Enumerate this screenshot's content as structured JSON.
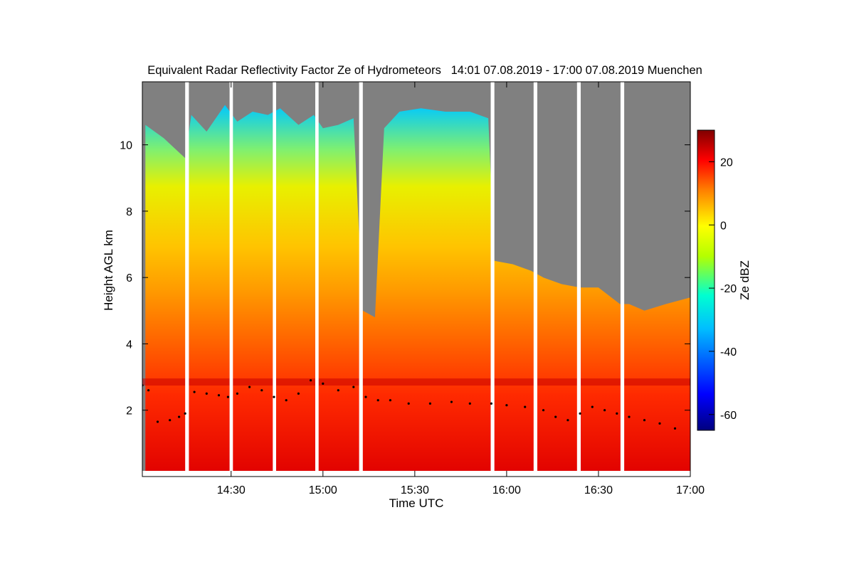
{
  "chart_data": {
    "type": "heatmap",
    "title": "Equivalent Radar Reflectivity Factor Ze of Hydrometeors   14:01 07.08.2019 - 17:00 07.08.2019 Muenchen",
    "xlabel": "Time UTC",
    "ylabel": "Height AGL km",
    "colorbar_label": "Ze dBZ",
    "x_range_minutes_utc": [
      841,
      1020
    ],
    "y_range_km": [
      0,
      11.9
    ],
    "color_range_dbz": [
      -65,
      30
    ],
    "x_ticks": [
      {
        "minute": 870,
        "label": "14:30"
      },
      {
        "minute": 900,
        "label": "15:00"
      },
      {
        "minute": 930,
        "label": "15:30"
      },
      {
        "minute": 960,
        "label": "16:00"
      },
      {
        "minute": 990,
        "label": "16:30"
      },
      {
        "minute": 1020,
        "label": "17:00"
      }
    ],
    "y_ticks": [
      {
        "value": 2,
        "label": "2"
      },
      {
        "value": 4,
        "label": "4"
      },
      {
        "value": 6,
        "label": "6"
      },
      {
        "value": 8,
        "label": "8"
      },
      {
        "value": 10,
        "label": "10"
      }
    ],
    "colorbar_ticks": [
      {
        "value": 20,
        "label": "20"
      },
      {
        "value": 0,
        "label": "0"
      },
      {
        "value": -20,
        "label": "-20"
      },
      {
        "value": -40,
        "label": "-40"
      },
      {
        "value": -60,
        "label": "-60"
      }
    ],
    "no_data_color": "#808080",
    "data_gaps_minutes": [
      [
        855,
        856.2
      ],
      [
        869.5,
        870.6
      ],
      [
        883.6,
        884.7
      ],
      [
        897.5,
        898.6
      ],
      [
        911.8,
        913.0
      ],
      [
        954.8,
        956.0
      ],
      [
        968.8,
        970.0
      ],
      [
        983.0,
        984.2
      ],
      [
        997.2,
        998.4
      ]
    ],
    "echo_top_profile": [
      {
        "minute": 842,
        "height_km": 10.6
      },
      {
        "minute": 848,
        "height_km": 10.2
      },
      {
        "minute": 855,
        "height_km": 9.6
      },
      {
        "minute": 857,
        "height_km": 10.9
      },
      {
        "minute": 862,
        "height_km": 10.4
      },
      {
        "minute": 868,
        "height_km": 11.2
      },
      {
        "minute": 872,
        "height_km": 10.7
      },
      {
        "minute": 877,
        "height_km": 11.0
      },
      {
        "minute": 882,
        "height_km": 10.9
      },
      {
        "minute": 886,
        "height_km": 11.1
      },
      {
        "minute": 892,
        "height_km": 10.6
      },
      {
        "minute": 897,
        "height_km": 10.9
      },
      {
        "minute": 900,
        "height_km": 10.5
      },
      {
        "minute": 905,
        "height_km": 10.6
      },
      {
        "minute": 910,
        "height_km": 10.8
      },
      {
        "minute": 913,
        "height_km": 5.0
      },
      {
        "minute": 917,
        "height_km": 4.8
      },
      {
        "minute": 920,
        "height_km": 10.5
      },
      {
        "minute": 925,
        "height_km": 11.0
      },
      {
        "minute": 932,
        "height_km": 11.1
      },
      {
        "minute": 940,
        "height_km": 11.0
      },
      {
        "minute": 948,
        "height_km": 11.0
      },
      {
        "minute": 954,
        "height_km": 10.8
      },
      {
        "minute": 956,
        "height_km": 6.5
      },
      {
        "minute": 962,
        "height_km": 6.4
      },
      {
        "minute": 968,
        "height_km": 6.2
      },
      {
        "minute": 972,
        "height_km": 6.0
      },
      {
        "minute": 978,
        "height_km": 5.8
      },
      {
        "minute": 984,
        "height_km": 5.7
      },
      {
        "minute": 990,
        "height_km": 5.7
      },
      {
        "minute": 997,
        "height_km": 5.2
      },
      {
        "minute": 1000,
        "height_km": 5.2
      },
      {
        "minute": 1005,
        "height_km": 5.0
      },
      {
        "minute": 1012,
        "height_km": 5.2
      },
      {
        "minute": 1020,
        "height_km": 5.4
      }
    ],
    "melting_layer_km": 2.85,
    "cloud_base_points": [
      {
        "minute": 841,
        "height_km": 2.75
      },
      {
        "minute": 843,
        "height_km": 2.6
      },
      {
        "minute": 846,
        "height_km": 1.65
      },
      {
        "minute": 850,
        "height_km": 1.7
      },
      {
        "minute": 853,
        "height_km": 1.8
      },
      {
        "minute": 855,
        "height_km": 1.9
      },
      {
        "minute": 858,
        "height_km": 2.55
      },
      {
        "minute": 862,
        "height_km": 2.5
      },
      {
        "minute": 866,
        "height_km": 2.45
      },
      {
        "minute": 869,
        "height_km": 2.4
      },
      {
        "minute": 872,
        "height_km": 2.5
      },
      {
        "minute": 876,
        "height_km": 2.7
      },
      {
        "minute": 880,
        "height_km": 2.6
      },
      {
        "minute": 884,
        "height_km": 2.4
      },
      {
        "minute": 888,
        "height_km": 2.3
      },
      {
        "minute": 892,
        "height_km": 2.5
      },
      {
        "minute": 896,
        "height_km": 2.9
      },
      {
        "minute": 900,
        "height_km": 2.8
      },
      {
        "minute": 905,
        "height_km": 2.6
      },
      {
        "minute": 910,
        "height_km": 2.7
      },
      {
        "minute": 914,
        "height_km": 2.4
      },
      {
        "minute": 918,
        "height_km": 2.3
      },
      {
        "minute": 922,
        "height_km": 2.3
      },
      {
        "minute": 928,
        "height_km": 2.2
      },
      {
        "minute": 935,
        "height_km": 2.2
      },
      {
        "minute": 942,
        "height_km": 2.25
      },
      {
        "minute": 948,
        "height_km": 2.2
      },
      {
        "minute": 955,
        "height_km": 2.2
      },
      {
        "minute": 960,
        "height_km": 2.15
      },
      {
        "minute": 966,
        "height_km": 2.1
      },
      {
        "minute": 972,
        "height_km": 2.0
      },
      {
        "minute": 976,
        "height_km": 1.8
      },
      {
        "minute": 980,
        "height_km": 1.7
      },
      {
        "minute": 984,
        "height_km": 1.9
      },
      {
        "minute": 988,
        "height_km": 2.1
      },
      {
        "minute": 992,
        "height_km": 2.0
      },
      {
        "minute": 996,
        "height_km": 1.9
      },
      {
        "minute": 1000,
        "height_km": 1.8
      },
      {
        "minute": 1005,
        "height_km": 1.7
      },
      {
        "minute": 1010,
        "height_km": 1.6
      },
      {
        "minute": 1015,
        "height_km": 1.45
      }
    ]
  }
}
